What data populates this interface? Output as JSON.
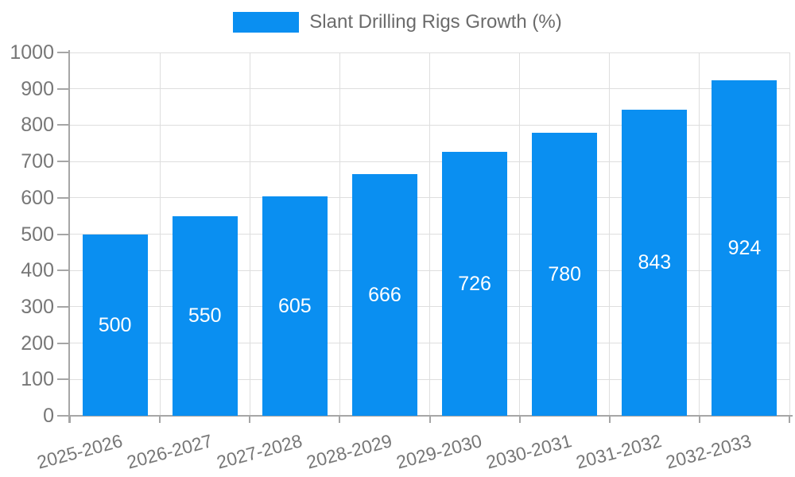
{
  "chart_data": {
    "type": "bar",
    "title": "",
    "legend": {
      "label": "Slant Drilling Rigs Growth (%)",
      "position": "top"
    },
    "categories": [
      "2025-2026",
      "2026-2027",
      "2027-2028",
      "2028-2029",
      "2029-2030",
      "2030-2031",
      "2031-2032",
      "2032-2033"
    ],
    "values": [
      500,
      550,
      605,
      666,
      726,
      780,
      843,
      924
    ],
    "xlabel": "",
    "ylabel": "",
    "ylim": [
      0,
      1000
    ],
    "ytick_step": 100,
    "grid": true,
    "colors": {
      "bar": "#0a8ff1",
      "grid": "#dedede",
      "axis": "#a6a6a6",
      "tick_text": "#777777",
      "legend_text": "#6b6b6b",
      "value_text": "#ffffff",
      "background": "#ffffff"
    }
  }
}
